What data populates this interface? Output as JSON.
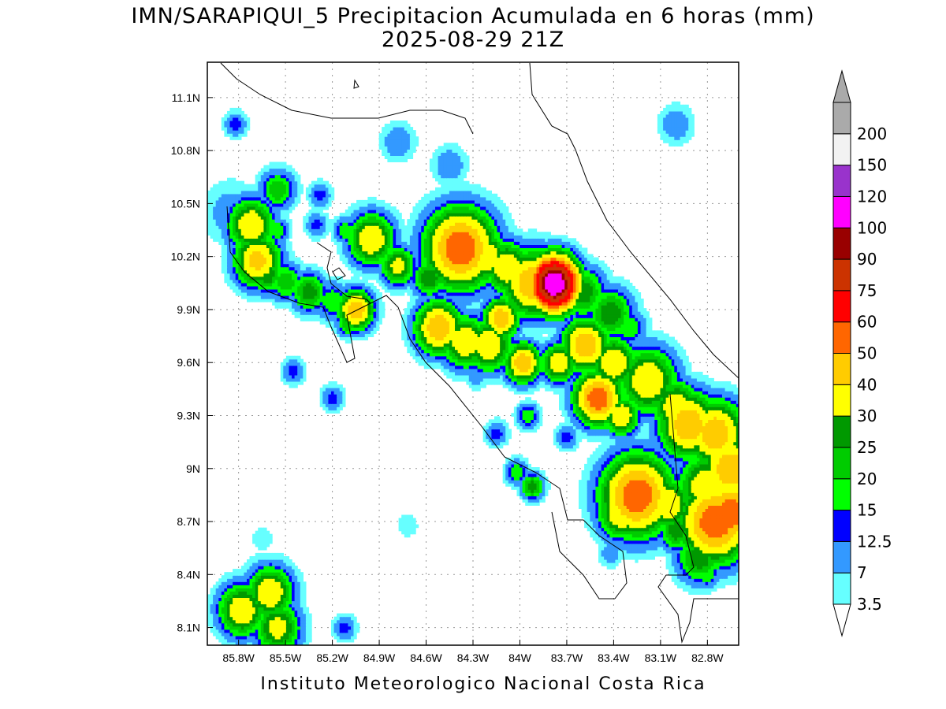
{
  "title": "IMN/SARAPIQUI_5 Precipitacion Acumulada en 6 horas (mm)",
  "subtitle": "2025-08-29 21Z",
  "footer": "Instituto Meteorologico Nacional Costa Rica",
  "chart_data": {
    "type": "heatmap",
    "lon_range": [
      -86.0,
      -82.6
    ],
    "lat_range": [
      8.0,
      11.3
    ],
    "xticks": [
      "85.8W",
      "85.5W",
      "85.2W",
      "84.9W",
      "84.6W",
      "84.3W",
      "84W",
      "83.7W",
      "83.4W",
      "83.1W",
      "82.8W"
    ],
    "yticks": [
      "11.1N",
      "10.8N",
      "10.5N",
      "10.2N",
      "9.9N",
      "9.6N",
      "9.3N",
      "9N",
      "8.7N",
      "8.4N",
      "8.1N"
    ],
    "grid": true,
    "legend_position": "right",
    "colorbar": {
      "labels": [
        "3.5",
        "7",
        "12.5",
        "15",
        "20",
        "25",
        "30",
        "40",
        "50",
        "60",
        "75",
        "90",
        "100",
        "120",
        "150",
        "200"
      ],
      "colors": [
        "#66ffff",
        "#3399ff",
        "#0000ff",
        "#00ff00",
        "#00cc00",
        "#009900",
        "#ffff00",
        "#ffcc00",
        "#ff6600",
        "#ff0000",
        "#cc3300",
        "#990000",
        "#ff00ff",
        "#9933cc",
        "#f2f2f2",
        "#aaaaaa"
      ]
    }
  }
}
